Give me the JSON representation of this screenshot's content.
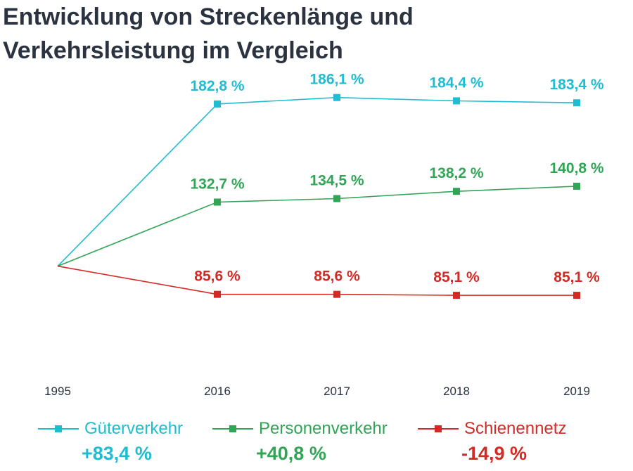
{
  "title_lines": [
    "Entwicklung von Streckenlänge und",
    "Verkehrsleistung im Vergleich"
  ],
  "chart_data": {
    "type": "line",
    "categories": [
      "1995",
      "2016",
      "2017",
      "2018",
      "2019"
    ],
    "ylim": [
      60,
      200
    ],
    "grid": false,
    "legend_position": "bottom",
    "series": [
      {
        "name": "Güterverkehr",
        "color": "#1fbcd2",
        "values": [
          100,
          182.8,
          186.1,
          184.4,
          183.4
        ],
        "labels": [
          "",
          "182,8 %",
          "186,1 %",
          "184,4 %",
          "183,4 %"
        ],
        "change": "+83,4 %"
      },
      {
        "name": "Personenverkehr",
        "color": "#2fa555",
        "values": [
          100,
          132.7,
          134.5,
          138.2,
          140.8
        ],
        "labels": [
          "",
          "132,7 %",
          "134,5 %",
          "138,2 %",
          "140,8 %"
        ],
        "change": "+40,8 %"
      },
      {
        "name": "Schienennetz",
        "color": "#d42a24",
        "values": [
          100,
          85.6,
          85.6,
          85.1,
          85.1
        ],
        "labels": [
          "",
          "85,6 %",
          "85,6 %",
          "85,1 %",
          "85,1 %"
        ],
        "change": "-14,9 %"
      }
    ]
  }
}
